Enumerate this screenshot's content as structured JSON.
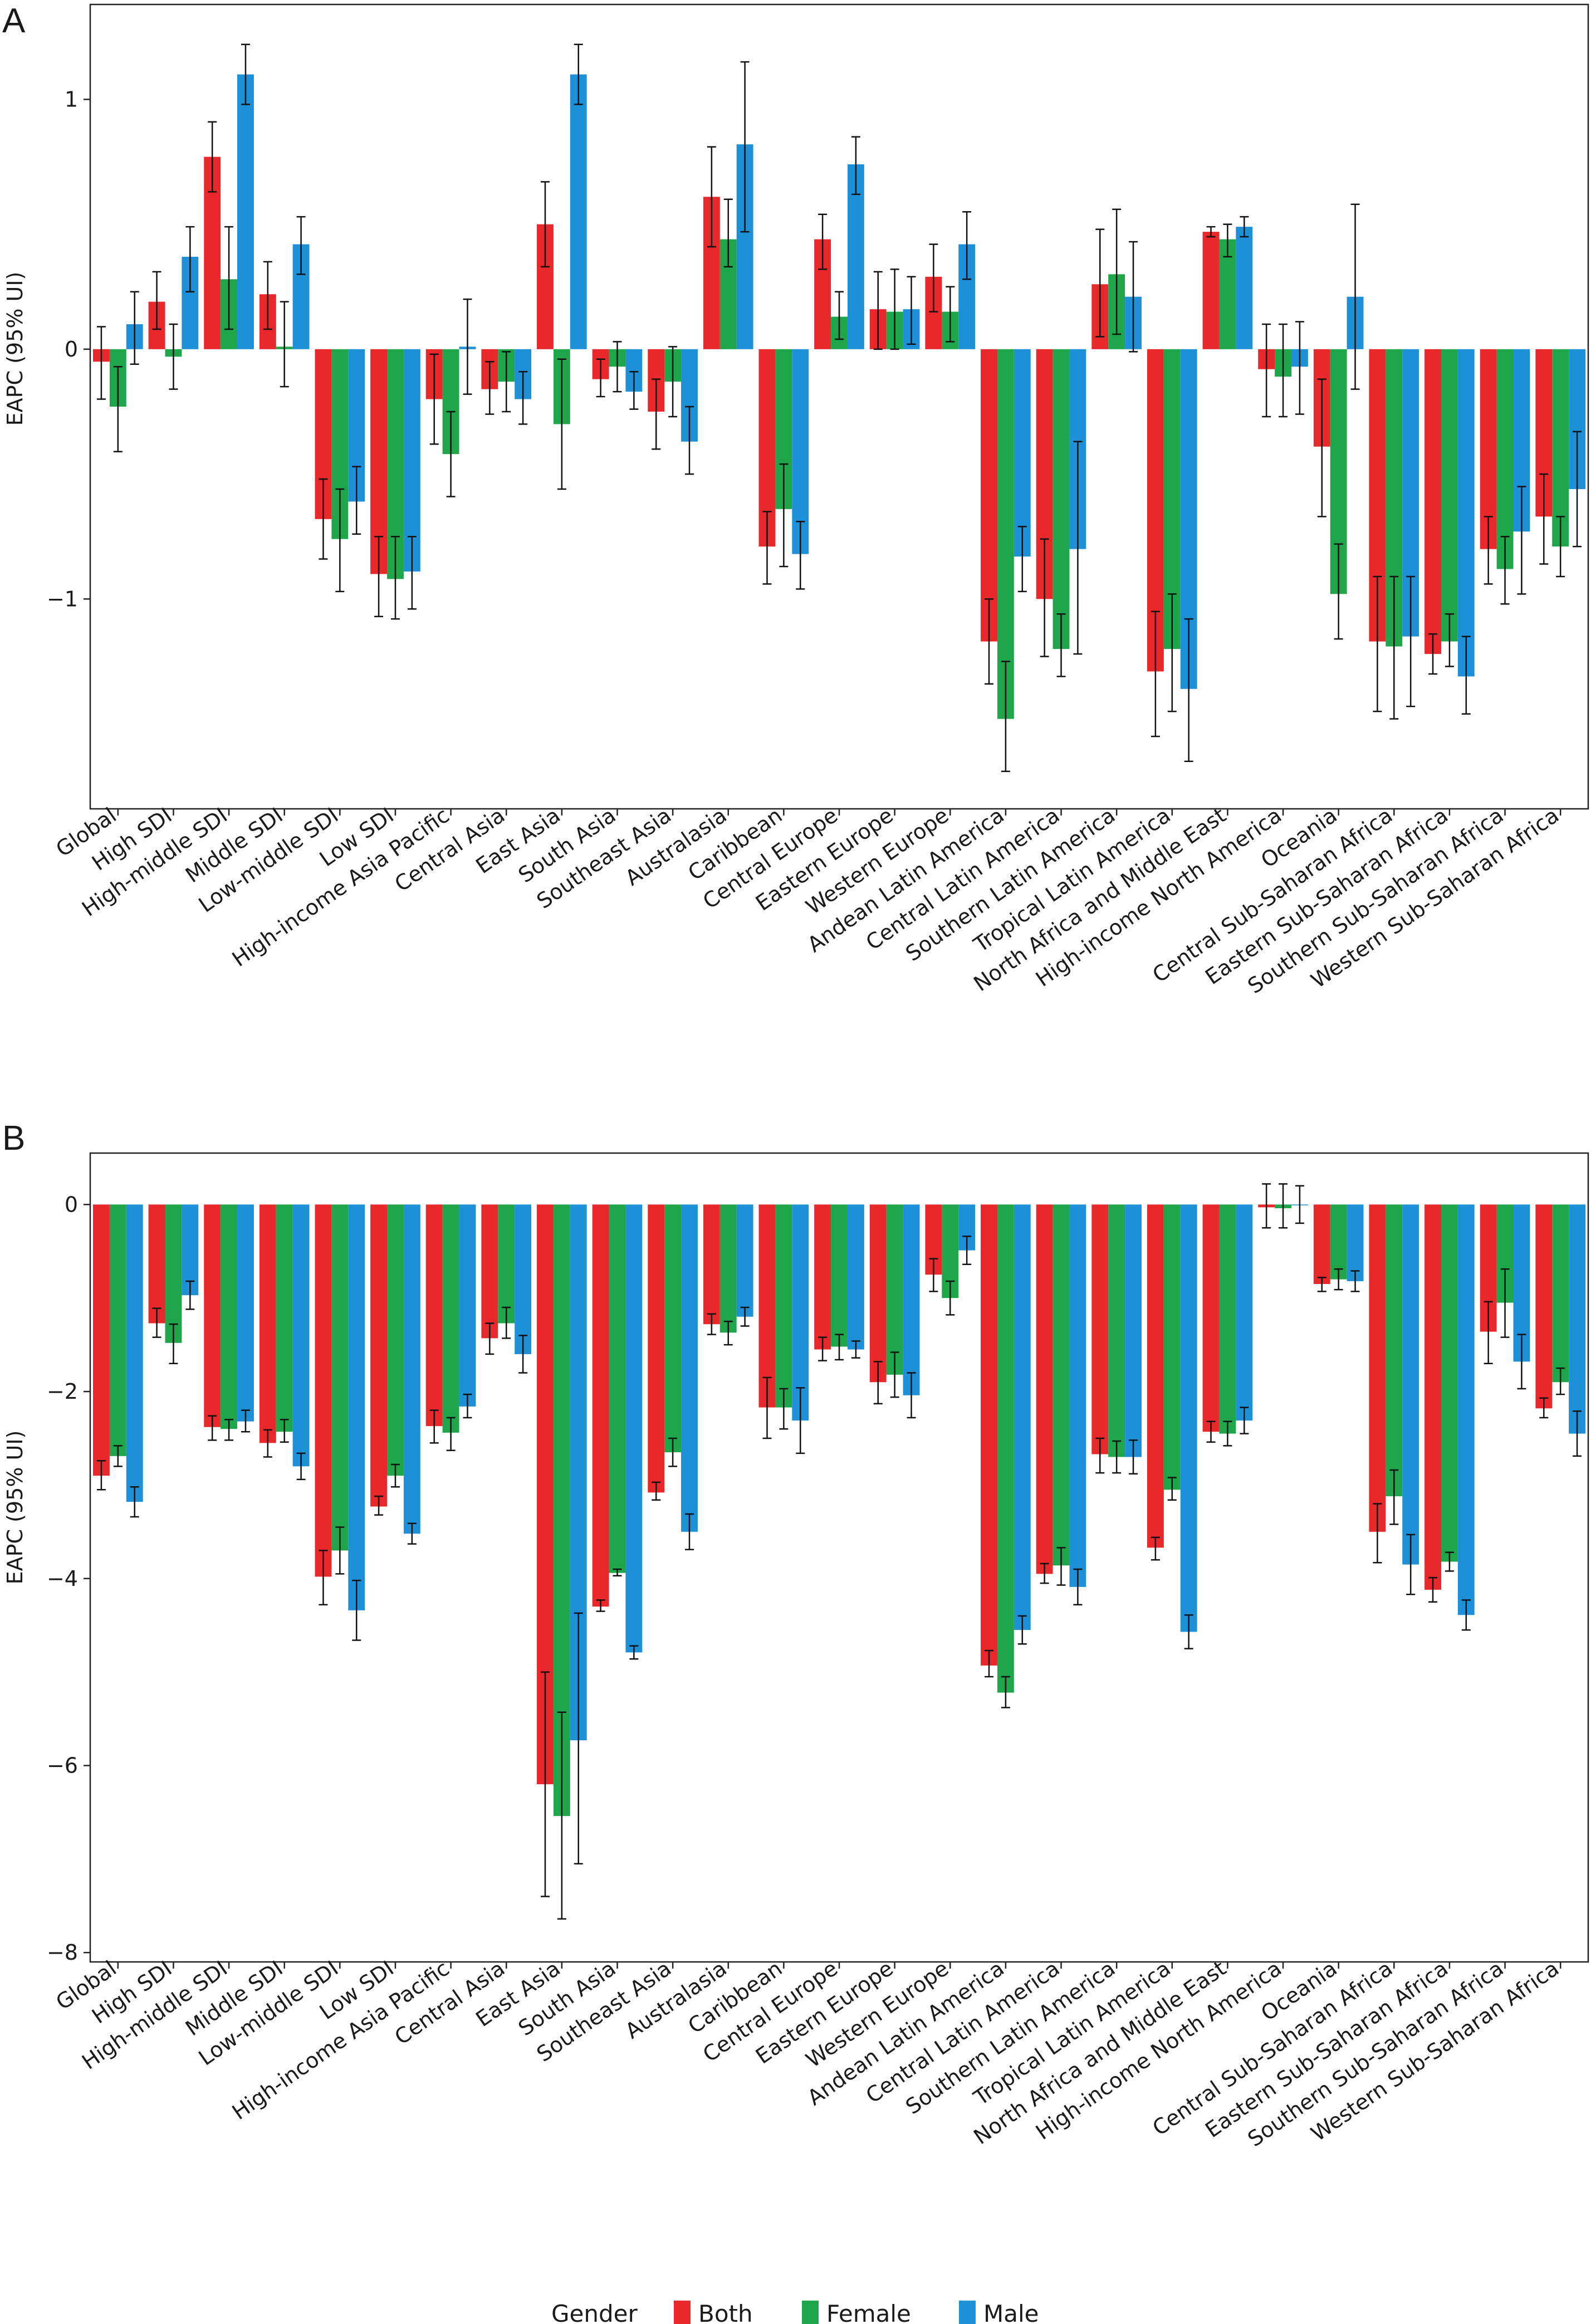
{
  "legend": {
    "title": "Gender",
    "items": [
      {
        "name": "Both",
        "color": "#e8282b"
      },
      {
        "name": "Female",
        "color": "#1fa64a"
      },
      {
        "name": "Male",
        "color": "#1e90d8"
      }
    ]
  },
  "chart_data": [
    {
      "type": "bar",
      "panel": "A",
      "ylabel": "EAPC (95% UI)",
      "ylim": [
        -1.84,
        1.38
      ],
      "yticks": [
        -1,
        0,
        1
      ],
      "categories": [
        "Global",
        "High SDI",
        "High-middle SDI",
        "Middle SDI",
        "Low-middle SDI",
        "Low SDI",
        "High-income Asia Pacific",
        "Central Asia",
        "East Asia",
        "South Asia",
        "Southeast Asia",
        "Australasia",
        "Caribbean",
        "Central Europe",
        "Eastern Europe",
        "Western Europe",
        "Andean Latin America",
        "Central Latin America",
        "Southern Latin America",
        "Tropical Latin America",
        "North Africa and Middle East",
        "High-income North America",
        "Oceania",
        "Central Sub-Saharan Africa",
        "Eastern Sub-Saharan Africa",
        "Southern Sub-Saharan Africa",
        "Western Sub-Saharan Africa"
      ],
      "series": [
        {
          "name": "Both",
          "color": "#e8282b",
          "values": [
            -0.05,
            0.19,
            0.77,
            0.22,
            -0.68,
            -0.9,
            -0.2,
            -0.16,
            0.5,
            -0.12,
            -0.25,
            0.61,
            -0.79,
            0.44,
            0.16,
            0.29,
            -1.17,
            -1.0,
            0.26,
            -1.29,
            0.47,
            -0.08,
            -0.39,
            -1.17,
            -1.22,
            -0.8,
            -0.67
          ],
          "lower": [
            -0.2,
            0.08,
            0.63,
            0.08,
            -0.84,
            -1.07,
            -0.38,
            -0.26,
            0.33,
            -0.19,
            -0.4,
            0.41,
            -0.94,
            0.32,
            0.0,
            0.15,
            -1.34,
            -1.23,
            0.05,
            -1.55,
            0.45,
            -0.27,
            -0.67,
            -1.45,
            -1.3,
            -0.94,
            -0.86
          ],
          "upper": [
            0.09,
            0.31,
            0.91,
            0.35,
            -0.52,
            -0.75,
            -0.02,
            -0.05,
            0.67,
            -0.04,
            -0.12,
            0.81,
            -0.65,
            0.54,
            0.31,
            0.42,
            -1.0,
            -0.76,
            0.48,
            -1.05,
            0.49,
            0.1,
            -0.12,
            -0.91,
            -1.14,
            -0.67,
            -0.5
          ]
        },
        {
          "name": "Female",
          "color": "#1fa64a",
          "values": [
            -0.23,
            -0.03,
            0.28,
            0.01,
            -0.76,
            -0.92,
            -0.42,
            -0.13,
            -0.3,
            -0.07,
            -0.13,
            0.44,
            -0.64,
            0.13,
            0.15,
            0.15,
            -1.48,
            -1.2,
            0.3,
            -1.2,
            0.44,
            -0.11,
            -0.98,
            -1.19,
            -1.17,
            -0.88,
            -0.79
          ],
          "lower": [
            -0.41,
            -0.16,
            0.08,
            -0.15,
            -0.97,
            -1.08,
            -0.59,
            -0.25,
            -0.56,
            -0.17,
            -0.27,
            0.33,
            -0.87,
            0.04,
            0.0,
            0.03,
            -1.69,
            -1.31,
            0.06,
            -1.45,
            0.37,
            -0.27,
            -1.16,
            -1.48,
            -1.27,
            -1.02,
            -0.91
          ],
          "upper": [
            -0.07,
            0.1,
            0.49,
            0.19,
            -0.56,
            -0.75,
            -0.25,
            -0.01,
            -0.04,
            0.03,
            0.01,
            0.6,
            -0.46,
            0.23,
            0.32,
            0.25,
            -1.25,
            -1.06,
            0.56,
            -0.98,
            0.5,
            0.1,
            -0.78,
            -0.91,
            -1.06,
            -0.75,
            -0.67
          ]
        },
        {
          "name": "Male",
          "color": "#1e90d8",
          "values": [
            0.1,
            0.37,
            1.1,
            0.42,
            -0.61,
            -0.89,
            0.01,
            -0.2,
            1.1,
            -0.17,
            -0.37,
            0.82,
            -0.82,
            0.74,
            0.16,
            0.42,
            -0.83,
            -0.8,
            0.21,
            -1.36,
            0.49,
            -0.07,
            0.21,
            -1.15,
            -1.31,
            -0.73,
            -0.56
          ],
          "lower": [
            -0.06,
            0.23,
            0.98,
            0.3,
            -0.74,
            -1.04,
            -0.18,
            -0.3,
            0.98,
            -0.24,
            -0.5,
            0.47,
            -0.96,
            0.62,
            0.02,
            0.28,
            -0.97,
            -1.22,
            -0.01,
            -1.65,
            0.45,
            -0.26,
            -0.16,
            -1.43,
            -1.46,
            -0.98,
            -0.79
          ],
          "upper": [
            0.23,
            0.49,
            1.22,
            0.53,
            -0.47,
            -0.75,
            0.2,
            -0.09,
            1.22,
            -0.09,
            -0.23,
            1.15,
            -0.69,
            0.85,
            0.29,
            0.55,
            -0.71,
            -0.37,
            0.43,
            -1.08,
            0.53,
            0.11,
            0.58,
            -0.91,
            -1.15,
            -0.55,
            -0.33
          ]
        }
      ]
    },
    {
      "type": "bar",
      "panel": "B",
      "ylabel": "EAPC (95% UI)",
      "ylim": [
        -8.1,
        0.55
      ],
      "yticks": [
        -8,
        -6,
        -4,
        -2,
        0
      ],
      "categories": [
        "Global",
        "High SDI",
        "High-middle SDI",
        "Middle SDI",
        "Low-middle SDI",
        "Low SDI",
        "High-income Asia Pacific",
        "Central Asia",
        "East Asia",
        "South Asia",
        "Southeast Asia",
        "Australasia",
        "Caribbean",
        "Central Europe",
        "Eastern Europe",
        "Western Europe",
        "Andean Latin America",
        "Central Latin America",
        "Southern Latin America",
        "Tropical Latin America",
        "North Africa and Middle East",
        "High-income North America",
        "Oceania",
        "Central Sub-Saharan Africa",
        "Eastern Sub-Saharan Africa",
        "Southern Sub-Saharan Africa",
        "Western Sub-Saharan Africa"
      ],
      "series": [
        {
          "name": "Both",
          "color": "#e8282b",
          "values": [
            -2.9,
            -1.27,
            -2.38,
            -2.55,
            -3.98,
            -3.23,
            -2.37,
            -1.43,
            -6.2,
            -4.3,
            -3.08,
            -1.28,
            -2.17,
            -1.55,
            -1.9,
            -0.75,
            -4.93,
            -3.95,
            -2.67,
            -3.67,
            -2.43,
            -0.03,
            -0.85,
            -3.5,
            -4.12,
            -1.36,
            -2.18
          ],
          "lower": [
            -3.05,
            -1.42,
            -2.52,
            -2.7,
            -4.28,
            -3.32,
            -2.55,
            -1.6,
            -7.4,
            -4.35,
            -3.16,
            -1.39,
            -2.5,
            -1.67,
            -2.13,
            -0.93,
            -5.05,
            -4.05,
            -2.87,
            -3.8,
            -2.54,
            -0.25,
            -0.93,
            -3.83,
            -4.25,
            -1.7,
            -2.28
          ],
          "upper": [
            -2.74,
            -1.11,
            -2.26,
            -2.41,
            -3.7,
            -3.12,
            -2.2,
            -1.27,
            -5.0,
            -4.23,
            -2.97,
            -1.17,
            -1.85,
            -1.42,
            -1.68,
            -0.58,
            -4.77,
            -3.84,
            -2.5,
            -3.56,
            -2.32,
            0.22,
            -0.78,
            -3.2,
            -3.99,
            -1.04,
            -2.07
          ]
        },
        {
          "name": "Female",
          "color": "#1fa64a",
          "values": [
            -2.69,
            -1.48,
            -2.4,
            -2.43,
            -3.7,
            -2.9,
            -2.44,
            -1.27,
            -6.54,
            -3.94,
            -2.65,
            -1.37,
            -2.17,
            -1.52,
            -1.82,
            -1.0,
            -5.22,
            -3.86,
            -2.7,
            -3.05,
            -2.45,
            -0.04,
            -0.8,
            -3.12,
            -3.82,
            -1.05,
            -1.9
          ],
          "lower": [
            -2.8,
            -1.7,
            -2.52,
            -2.54,
            -3.95,
            -3.02,
            -2.63,
            -1.43,
            -7.64,
            -3.97,
            -2.8,
            -1.5,
            -2.4,
            -1.66,
            -2.06,
            -1.18,
            -5.38,
            -4.07,
            -2.87,
            -3.16,
            -2.58,
            -0.25,
            -0.91,
            -3.42,
            -3.92,
            -1.42,
            -2.03
          ],
          "upper": [
            -2.58,
            -1.28,
            -2.3,
            -2.3,
            -3.45,
            -2.78,
            -2.28,
            -1.1,
            -5.43,
            -3.9,
            -2.5,
            -1.25,
            -1.97,
            -1.39,
            -1.58,
            -0.82,
            -5.05,
            -3.67,
            -2.53,
            -2.92,
            -2.32,
            0.22,
            -0.69,
            -2.84,
            -3.72,
            -0.69,
            -1.75
          ]
        },
        {
          "name": "Male",
          "color": "#1e90d8",
          "values": [
            -3.18,
            -0.97,
            -2.32,
            -2.8,
            -4.34,
            -3.52,
            -2.16,
            -1.6,
            -5.73,
            -4.79,
            -3.5,
            -1.2,
            -2.31,
            -1.55,
            -2.04,
            -0.49,
            -4.55,
            -4.09,
            -2.7,
            -4.57,
            -2.31,
            0.0,
            -0.82,
            -3.85,
            -4.39,
            -1.68,
            -2.45
          ],
          "lower": [
            -3.34,
            -1.12,
            -2.43,
            -2.94,
            -4.66,
            -3.63,
            -2.28,
            -1.8,
            -7.05,
            -4.86,
            -3.69,
            -1.3,
            -2.66,
            -1.64,
            -2.28,
            -0.64,
            -4.7,
            -4.28,
            -2.88,
            -4.75,
            -2.45,
            -0.2,
            -0.93,
            -4.17,
            -4.55,
            -1.97,
            -2.69
          ],
          "upper": [
            -3.02,
            -0.82,
            -2.2,
            -2.66,
            -4.02,
            -3.41,
            -2.03,
            -1.4,
            -4.37,
            -4.72,
            -3.31,
            -1.1,
            -1.96,
            -1.46,
            -1.8,
            -0.34,
            -4.4,
            -3.9,
            -2.52,
            -4.39,
            -2.17,
            0.2,
            -0.71,
            -3.53,
            -4.23,
            -1.39,
            -2.21
          ]
        }
      ]
    }
  ]
}
